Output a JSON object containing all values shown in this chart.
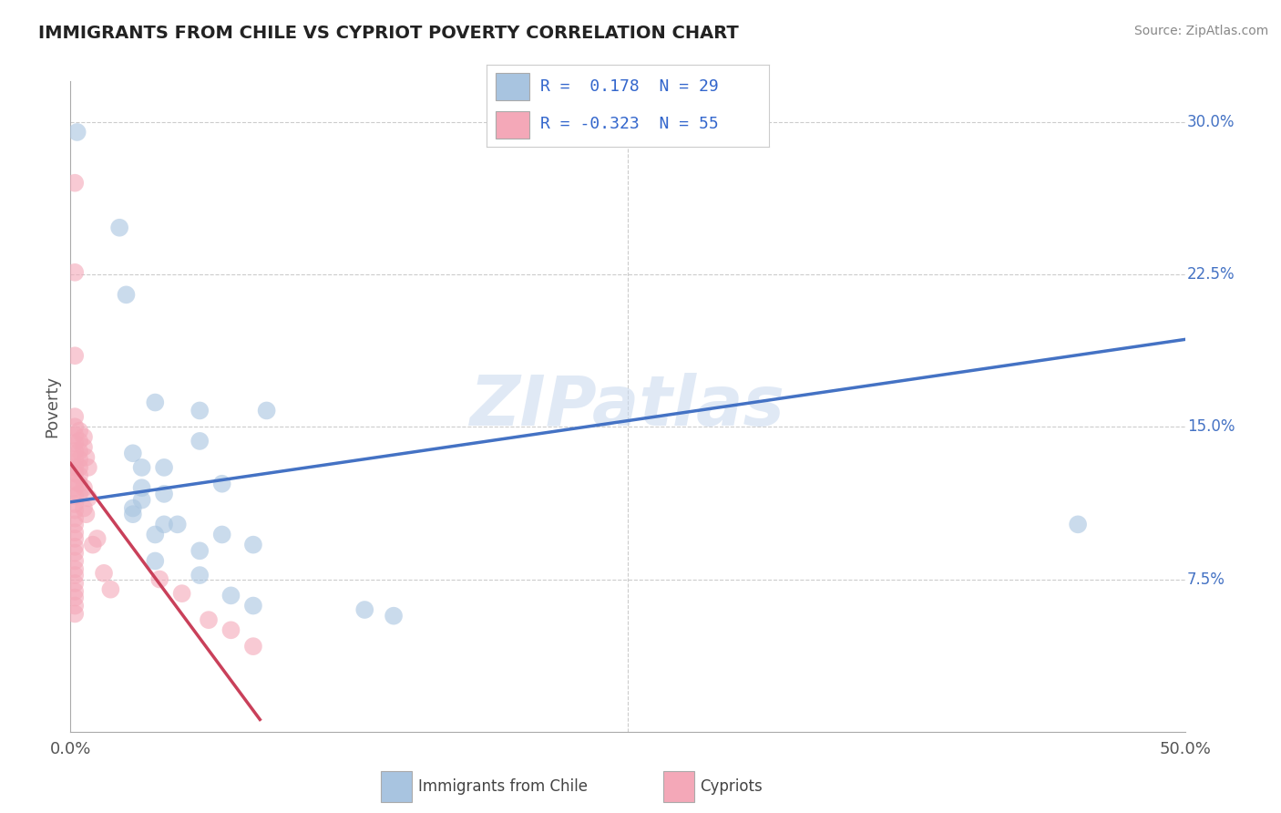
{
  "title": "IMMIGRANTS FROM CHILE VS CYPRIOT POVERTY CORRELATION CHART",
  "source": "Source: ZipAtlas.com",
  "ylabel": "Poverty",
  "xlim": [
    0.0,
    0.5
  ],
  "ylim": [
    0.0,
    0.32
  ],
  "ytick_labels_right": [
    "30.0%",
    "22.5%",
    "15.0%",
    "7.5%"
  ],
  "ytick_vals_right": [
    0.3,
    0.225,
    0.15,
    0.075
  ],
  "background_color": "#ffffff",
  "watermark": "ZIPatlas",
  "legend_R1": " 0.178",
  "legend_N1": "29",
  "legend_R2": "-0.323",
  "legend_N2": "55",
  "blue_color": "#a8c4e0",
  "pink_color": "#f4a8b8",
  "blue_line_color": "#4472c4",
  "pink_line_color": "#c9405a",
  "blue_scatter": [
    [
      0.003,
      0.295
    ],
    [
      0.022,
      0.248
    ],
    [
      0.025,
      0.215
    ],
    [
      0.038,
      0.162
    ],
    [
      0.058,
      0.158
    ],
    [
      0.088,
      0.158
    ],
    [
      0.058,
      0.143
    ],
    [
      0.028,
      0.137
    ],
    [
      0.032,
      0.13
    ],
    [
      0.042,
      0.13
    ],
    [
      0.068,
      0.122
    ],
    [
      0.032,
      0.12
    ],
    [
      0.042,
      0.117
    ],
    [
      0.032,
      0.114
    ],
    [
      0.028,
      0.11
    ],
    [
      0.028,
      0.107
    ],
    [
      0.042,
      0.102
    ],
    [
      0.048,
      0.102
    ],
    [
      0.038,
      0.097
    ],
    [
      0.068,
      0.097
    ],
    [
      0.082,
      0.092
    ],
    [
      0.058,
      0.089
    ],
    [
      0.038,
      0.084
    ],
    [
      0.058,
      0.077
    ],
    [
      0.072,
      0.067
    ],
    [
      0.082,
      0.062
    ],
    [
      0.145,
      0.057
    ],
    [
      0.452,
      0.102
    ],
    [
      0.132,
      0.06
    ]
  ],
  "pink_scatter": [
    [
      0.002,
      0.27
    ],
    [
      0.002,
      0.226
    ],
    [
      0.002,
      0.185
    ],
    [
      0.002,
      0.155
    ],
    [
      0.002,
      0.15
    ],
    [
      0.002,
      0.146
    ],
    [
      0.002,
      0.142
    ],
    [
      0.002,
      0.138
    ],
    [
      0.002,
      0.134
    ],
    [
      0.002,
      0.13
    ],
    [
      0.002,
      0.127
    ],
    [
      0.002,
      0.123
    ],
    [
      0.002,
      0.12
    ],
    [
      0.002,
      0.116
    ],
    [
      0.002,
      0.112
    ],
    [
      0.002,
      0.109
    ],
    [
      0.002,
      0.105
    ],
    [
      0.002,
      0.102
    ],
    [
      0.002,
      0.098
    ],
    [
      0.002,
      0.095
    ],
    [
      0.002,
      0.091
    ],
    [
      0.002,
      0.088
    ],
    [
      0.002,
      0.084
    ],
    [
      0.002,
      0.08
    ],
    [
      0.002,
      0.077
    ],
    [
      0.002,
      0.073
    ],
    [
      0.002,
      0.069
    ],
    [
      0.002,
      0.066
    ],
    [
      0.002,
      0.062
    ],
    [
      0.002,
      0.058
    ],
    [
      0.004,
      0.148
    ],
    [
      0.004,
      0.143
    ],
    [
      0.004,
      0.138
    ],
    [
      0.004,
      0.134
    ],
    [
      0.004,
      0.13
    ],
    [
      0.004,
      0.126
    ],
    [
      0.004,
      0.122
    ],
    [
      0.004,
      0.117
    ],
    [
      0.006,
      0.145
    ],
    [
      0.006,
      0.14
    ],
    [
      0.006,
      0.12
    ],
    [
      0.006,
      0.11
    ],
    [
      0.007,
      0.135
    ],
    [
      0.007,
      0.107
    ],
    [
      0.008,
      0.13
    ],
    [
      0.008,
      0.115
    ],
    [
      0.01,
      0.092
    ],
    [
      0.012,
      0.095
    ],
    [
      0.015,
      0.078
    ],
    [
      0.018,
      0.07
    ],
    [
      0.04,
      0.075
    ],
    [
      0.05,
      0.068
    ],
    [
      0.062,
      0.055
    ],
    [
      0.072,
      0.05
    ],
    [
      0.082,
      0.042
    ]
  ],
  "blue_line": [
    [
      0.0,
      0.113
    ],
    [
      0.5,
      0.193
    ]
  ],
  "pink_line": [
    [
      0.0,
      0.132
    ],
    [
      0.085,
      0.006
    ]
  ]
}
